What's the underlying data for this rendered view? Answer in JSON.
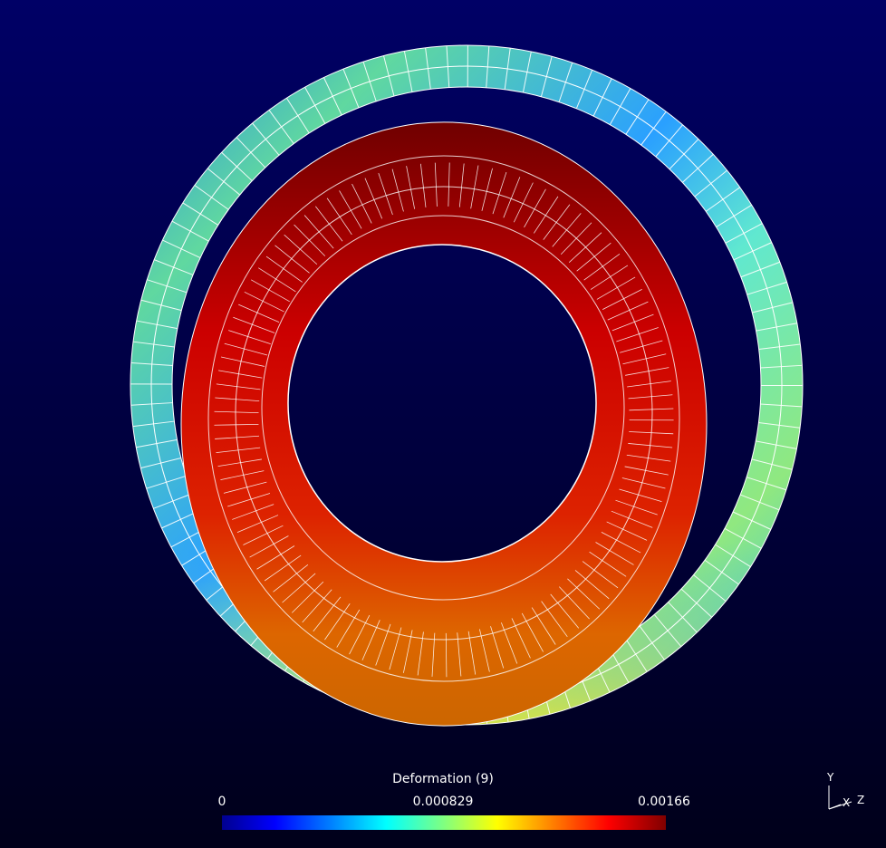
{
  "legend": {
    "title": "Deformation (9)",
    "ticks": [
      "0",
      "0.000829",
      "0.00166"
    ]
  },
  "axes": {
    "y": "Y",
    "x": "X",
    "z": "Z"
  }
}
